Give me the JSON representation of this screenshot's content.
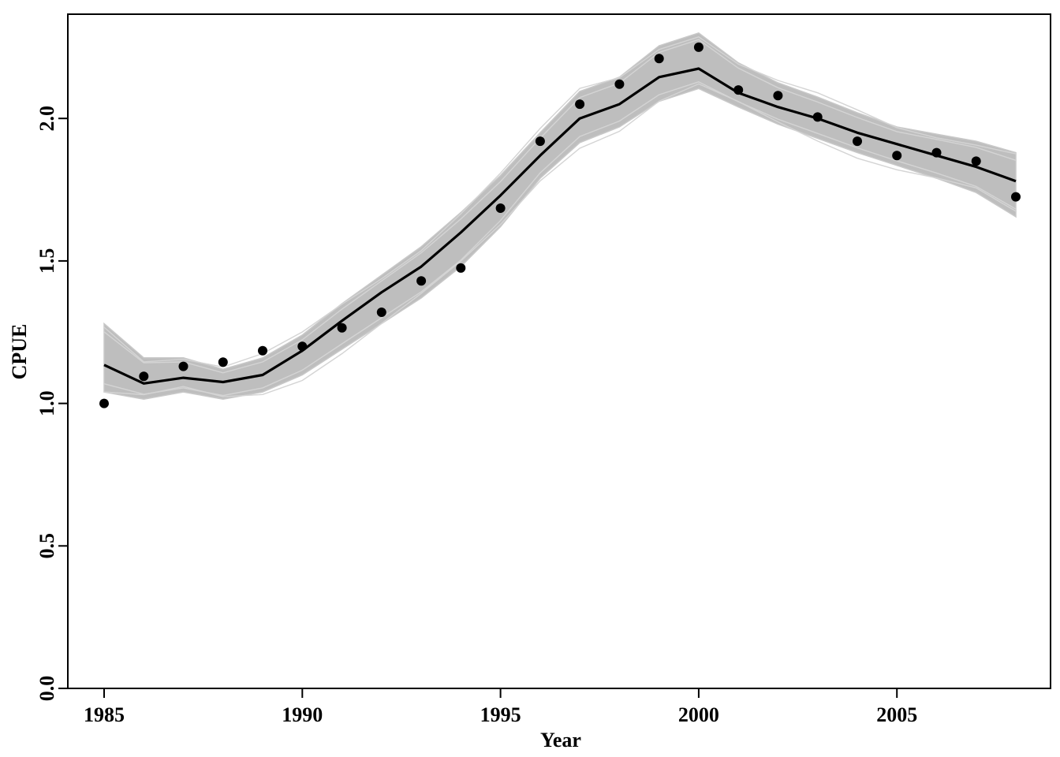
{
  "chart_data": {
    "type": "line",
    "title": "",
    "xlabel": "Year",
    "ylabel": "CPUE",
    "xlim": [
      1985,
      2008
    ],
    "ylim": [
      0,
      2.35
    ],
    "xticks": [
      {
        "value": 1985,
        "label": "1985"
      },
      {
        "value": 1990,
        "label": "1990"
      },
      {
        "value": 1995,
        "label": "1995"
      },
      {
        "value": 2000,
        "label": "2000"
      },
      {
        "value": 2005,
        "label": "2005"
      }
    ],
    "yticks": [
      {
        "value": 0.0,
        "label": "0.0"
      },
      {
        "value": 0.5,
        "label": "0.5"
      },
      {
        "value": 1.0,
        "label": "1.0"
      },
      {
        "value": 1.5,
        "label": "1.5"
      },
      {
        "value": 2.0,
        "label": "2.0"
      }
    ],
    "grid": false,
    "colors": {
      "band": "#bebebe",
      "line": "#000000",
      "points": "#000000"
    },
    "x": [
      1985,
      1986,
      1987,
      1988,
      1989,
      1990,
      1991,
      1992,
      1993,
      1994,
      1995,
      1996,
      1997,
      1998,
      1999,
      2000,
      2001,
      2002,
      2003,
      2004,
      2005,
      2006,
      2007,
      2008
    ],
    "series": [
      {
        "kind": "points",
        "values": [
          1.0,
          1.095,
          1.13,
          1.145,
          1.185,
          1.2,
          1.265,
          1.32,
          1.43,
          1.475,
          1.685,
          1.92,
          2.05,
          2.12,
          2.21,
          2.25,
          2.1,
          2.08,
          2.005,
          1.92,
          1.87,
          1.88,
          1.85,
          1.725
        ]
      },
      {
        "kind": "line",
        "values": [
          1.135,
          1.07,
          1.09,
          1.075,
          1.1,
          1.185,
          1.29,
          1.39,
          1.48,
          1.6,
          1.73,
          1.87,
          2.0,
          2.05,
          2.145,
          2.175,
          2.09,
          2.04,
          2.0,
          1.95,
          1.91,
          1.87,
          1.83,
          1.78
        ]
      },
      {
        "kind": "band-lower",
        "values": [
          1.04,
          1.015,
          1.04,
          1.015,
          1.04,
          1.1,
          1.19,
          1.28,
          1.37,
          1.48,
          1.62,
          1.79,
          1.915,
          1.97,
          2.06,
          2.105,
          2.04,
          1.98,
          1.93,
          1.88,
          1.835,
          1.79,
          1.74,
          1.655
        ]
      },
      {
        "kind": "band-upper",
        "values": [
          1.28,
          1.16,
          1.16,
          1.12,
          1.16,
          1.24,
          1.35,
          1.45,
          1.55,
          1.67,
          1.8,
          1.95,
          2.095,
          2.145,
          2.255,
          2.3,
          2.195,
          2.125,
          2.075,
          2.02,
          1.97,
          1.945,
          1.92,
          1.88
        ]
      }
    ]
  }
}
